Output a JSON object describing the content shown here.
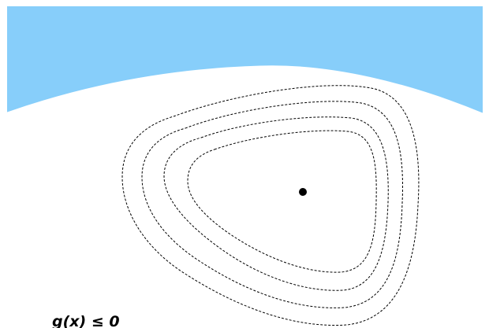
{
  "diagram": {
    "label": "g(x) ≤ 0",
    "colors": {
      "infeasible_region": "#87CEFA",
      "feasible_region": "#FFFFFF",
      "contour_stroke": "#000000",
      "optimum_point": "#000000"
    },
    "contour_count": 4,
    "contour_style": "dashed",
    "has_optimum_point": true
  }
}
